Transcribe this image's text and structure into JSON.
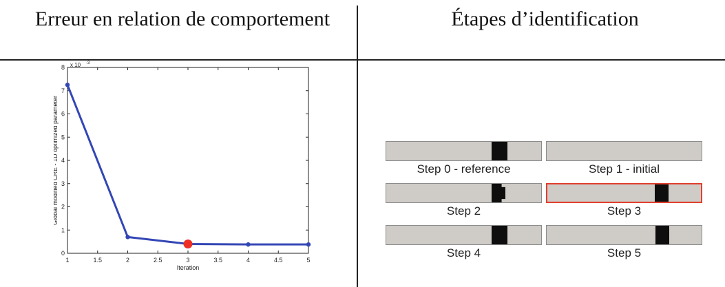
{
  "headers": {
    "left": "Erreur en relation de comportement",
    "right": "Étapes d’identification"
  },
  "chart_data": {
    "type": "line",
    "xlabel": "Iteration",
    "ylabel": "Global modified CRE - 1D optimized parameter",
    "y_exponent_label": "x 10",
    "y_exponent_power": "-3",
    "xlim": [
      1,
      5
    ],
    "ylim": [
      0,
      8
    ],
    "x_ticks": [
      "1",
      "1.5",
      "2",
      "2.5",
      "3",
      "3.5",
      "4",
      "4.5",
      "5"
    ],
    "y_ticks": [
      "0",
      "1",
      "2",
      "3",
      "4",
      "5",
      "6",
      "7",
      "8"
    ],
    "x": [
      1,
      2,
      3,
      4,
      5
    ],
    "values": [
      7.25,
      0.7,
      0.4,
      0.38,
      0.38
    ],
    "highlight_point": {
      "x": 3,
      "y": 0.4
    },
    "colors": {
      "line": "#3346b5",
      "highlight": "#ee2f24",
      "axis": "#222222"
    },
    "grid": false
  },
  "steps": [
    {
      "caption": "Step 0 - reference",
      "block": {
        "from": 0.68,
        "to": 0.78
      },
      "shape": "normal",
      "highlighted": false
    },
    {
      "caption": "Step 1 - initial",
      "block": null,
      "shape": "none",
      "highlighted": false
    },
    {
      "caption": "Step 2",
      "block": {
        "from": 0.68,
        "to": 0.77
      },
      "shape": "notched",
      "highlighted": false
    },
    {
      "caption": "Step 3",
      "block": {
        "from": 0.7,
        "to": 0.79
      },
      "shape": "normal",
      "highlighted": true
    },
    {
      "caption": "Step 4",
      "block": {
        "from": 0.68,
        "to": 0.78
      },
      "shape": "normal",
      "highlighted": false
    },
    {
      "caption": "Step 5",
      "block": {
        "from": 0.7,
        "to": 0.79
      },
      "shape": "normal",
      "highlighted": false
    }
  ],
  "colors": {
    "bar_fill": "#cfcbc7",
    "bar_border": "#8c8c8c",
    "block_fill": "#0e0e0e",
    "highlight_border": "#e0402f"
  }
}
